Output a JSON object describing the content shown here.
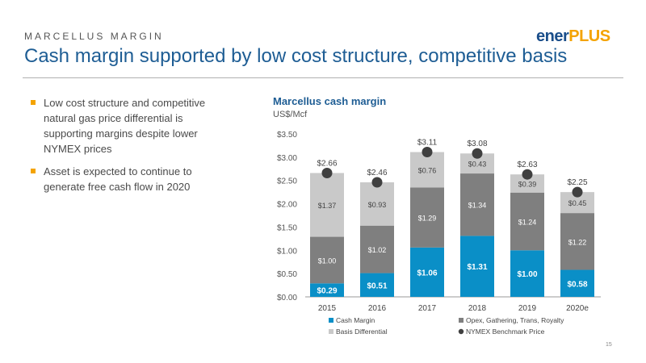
{
  "header": {
    "section": "MARCELLUS MARGIN",
    "title": "Cash margin supported by low cost structure, competitive basis",
    "logo_part1": "ener",
    "logo_part2": "PLUS"
  },
  "bullets": [
    "Low cost structure and competitive natural gas price differential is supporting margins despite lower NYMEX prices",
    "Asset is expected to continue to generate free cash flow in 2020"
  ],
  "page_number": "15",
  "colors": {
    "cash": "#0a8fc7",
    "opex": "#7f7f7f",
    "basis": "#c9c9c9",
    "nymex": "#404040",
    "title": "#1e5d94",
    "accent": "#f4a300"
  },
  "chart_data": {
    "type": "bar",
    "stacked": true,
    "title": "Marcellus cash margin",
    "ylabel": "US$/Mcf",
    "categories": [
      "2015",
      "2016",
      "2017",
      "2018",
      "2019",
      "2020e"
    ],
    "ylim": [
      0,
      3.5
    ],
    "yticks": [
      "$0.00",
      "$0.50",
      "$1.00",
      "$1.50",
      "$2.00",
      "$2.50",
      "$3.00",
      "$3.50"
    ],
    "series": [
      {
        "name": "Cash Margin",
        "values": [
          0.29,
          0.51,
          1.06,
          1.31,
          1.0,
          0.58
        ],
        "labels": [
          "$0.29",
          "$0.51",
          "$1.06",
          "$1.31",
          "$1.00",
          "$0.58"
        ]
      },
      {
        "name": "Opex, Gathering, Trans, Royalty",
        "values": [
          1.0,
          1.02,
          1.29,
          1.34,
          1.24,
          1.22
        ],
        "labels": [
          "$1.00",
          "$1.02",
          "$1.29",
          "$1.34",
          "$1.24",
          "$1.22"
        ]
      },
      {
        "name": "Basis  Differential",
        "values": [
          1.37,
          0.93,
          0.76,
          0.43,
          0.39,
          0.45
        ],
        "labels": [
          "$1.37",
          "$0.93",
          "$0.76",
          "$0.43",
          "$0.39",
          "$0.45"
        ]
      }
    ],
    "nymex": {
      "name": "NYMEX Benchmark Price",
      "values": [
        2.66,
        2.46,
        3.11,
        3.08,
        2.63,
        2.25
      ],
      "labels": [
        "$2.66",
        "$2.46",
        "$3.11",
        "$3.08",
        "$2.63",
        "$2.25"
      ]
    },
    "legend": "bottom"
  }
}
